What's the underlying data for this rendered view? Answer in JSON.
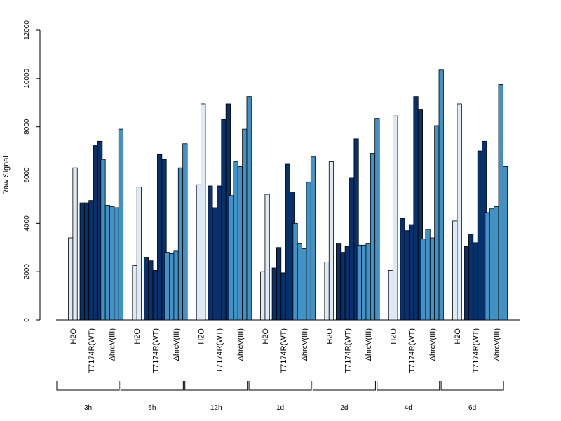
{
  "chart_data": {
    "type": "bar",
    "ylabel": "Raw Signal",
    "ylim": [
      0,
      12000
    ],
    "yticks": [
      0,
      2000,
      4000,
      6000,
      8000,
      10000,
      12000
    ],
    "grid": false,
    "colors": {
      "H2O": "#deebf7",
      "T7174R(WT)": "#08306b",
      "ΔhrcV(III)": "#4292c6"
    },
    "conditions": [
      "H2O",
      "T7174R(WT)",
      "ΔhrcV(III)"
    ],
    "groups": [
      {
        "time": "3h",
        "H2O": [
          3400,
          6300
        ],
        "T7174R(WT)": [
          4850,
          4850,
          4950,
          7250,
          7400
        ],
        "ΔhrcV(III)": [
          6650,
          4750,
          4700,
          4650,
          7900
        ]
      },
      {
        "time": "6h",
        "H2O": [
          2250,
          5500
        ],
        "T7174R(WT)": [
          2600,
          2450,
          2050,
          6850,
          6650
        ],
        "ΔhrcV(III)": [
          2800,
          2750,
          2850,
          6300,
          7300
        ]
      },
      {
        "time": "12h",
        "H2O": [
          5600,
          8950
        ],
        "T7174R(WT)": [
          5550,
          4650,
          5550,
          8300,
          8950
        ],
        "ΔhrcV(III)": [
          5150,
          6550,
          6350,
          7900,
          9250
        ]
      },
      {
        "time": "1d",
        "H2O": [
          2000,
          5200
        ],
        "T7174R(WT)": [
          2150,
          3000,
          1950,
          6450,
          5300
        ],
        "ΔhrcV(III)": [
          4000,
          3150,
          2950,
          5700,
          6750
        ]
      },
      {
        "time": "2d",
        "H2O": [
          2400,
          6550
        ],
        "T7174R(WT)": [
          3150,
          2800,
          3050,
          5900,
          7500
        ],
        "ΔhrcV(III)": [
          3100,
          3100,
          3150,
          6900,
          8350
        ]
      },
      {
        "time": "4d",
        "H2O": [
          2050,
          8450
        ],
        "T7174R(WT)": [
          4200,
          3700,
          3950,
          9250,
          8700
        ],
        "ΔhrcV(III)": [
          3350,
          3750,
          3400,
          8050,
          10350
        ]
      },
      {
        "time": "6d",
        "H2O": [
          4100,
          8950
        ],
        "T7174R(WT)": [
          3050,
          3550,
          3200,
          7000,
          7400
        ],
        "ΔhrcV(III)": [
          4450,
          4600,
          4700,
          9750,
          6350
        ]
      }
    ]
  }
}
